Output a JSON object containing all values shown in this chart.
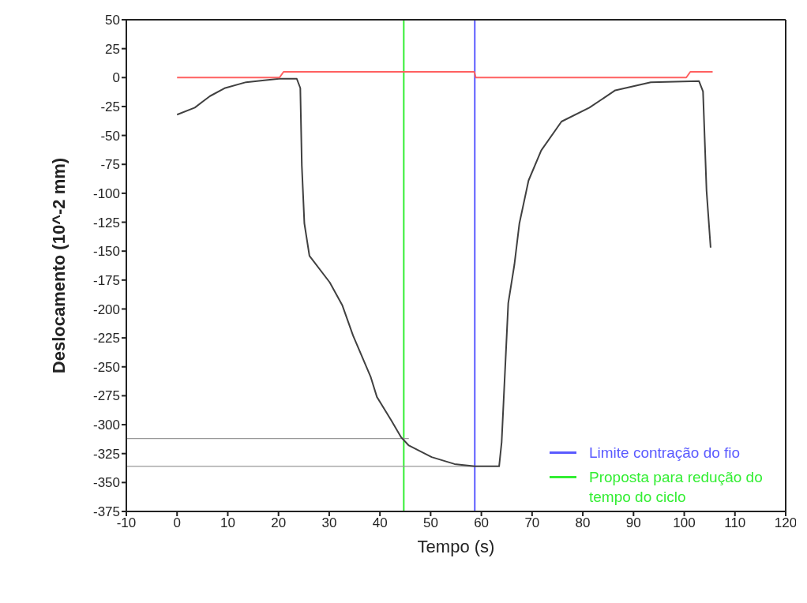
{
  "chart_data": {
    "type": "line",
    "xlabel": "Tempo (s)",
    "ylabel": "Deslocamento (10^-2 mm)",
    "xlim": [
      -10,
      120
    ],
    "xticks": [
      -10,
      0,
      10,
      20,
      30,
      40,
      50,
      60,
      70,
      80,
      90,
      100,
      110,
      120
    ],
    "ylim": [
      -375,
      50
    ],
    "yticks": [
      -375,
      -350,
      -325,
      -300,
      -275,
      -250,
      -225,
      -200,
      -175,
      -150,
      -125,
      -100,
      -75,
      -50,
      -25,
      0,
      25,
      50
    ],
    "legend": "bottom right",
    "marker": "none",
    "line_style": "solid",
    "series": [
      {
        "color": "#404040",
        "x": [
          0,
          3.5,
          6.5,
          9.5,
          13.6,
          20.1,
          23.6,
          24.3,
          24.6,
          25.1,
          26.1,
          30.1,
          32.6,
          34.7,
          38.2,
          39.4,
          42.2,
          44.2,
          45.7,
          50.2,
          54.7,
          58.7,
          63.5,
          64,
          65.3,
          66.5,
          67.5,
          69.3,
          71.8,
          75.8,
          81.3,
          86.4,
          93.4,
          102.9,
          103.7,
          104.4,
          105.2
        ],
        "values": [
          -32,
          -26,
          -16,
          -9,
          -4,
          -1,
          -1,
          -9,
          -76,
          -126,
          -154,
          -177,
          -197,
          -223,
          -259,
          -276,
          -296,
          -311,
          -318,
          -328,
          -334,
          -336,
          -336,
          -315,
          -195,
          -162,
          -126,
          -89,
          -63,
          -38,
          -26,
          -11,
          -4,
          -3,
          -12,
          -98,
          -147
        ]
      },
      {
        "color": "#ff6060",
        "x": [
          0,
          20.2,
          21,
          58.6,
          58.9,
          100.4,
          101.2,
          105.6
        ],
        "values": [
          0,
          0,
          5,
          5,
          0,
          0,
          5,
          5
        ]
      }
    ],
    "ref_lines": [
      {
        "axis": "x",
        "value": 58.7,
        "label": "Limite contração do fio",
        "color": "#5a5aff"
      },
      {
        "axis": "x",
        "value": 44.7,
        "label": "Proposta para redução do tempo do ciclo",
        "color": "#33ee33"
      },
      {
        "axis": "y",
        "value": -312,
        "color": "#999999"
      },
      {
        "axis": "y",
        "value": -336,
        "color": "#999999"
      }
    ]
  }
}
